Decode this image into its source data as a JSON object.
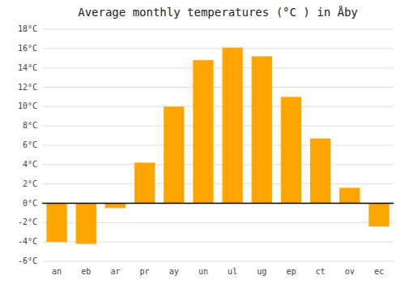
{
  "chart_data": {
    "type": "bar",
    "title": "Average monthly temperatures (°C ) in Åby",
    "categories": [
      "an",
      "eb",
      "ar",
      "pr",
      "ay",
      "un",
      "ul",
      "ug",
      "ep",
      "ct",
      "ov",
      "ec"
    ],
    "values": [
      -4.0,
      -4.2,
      -0.5,
      4.2,
      10.0,
      14.8,
      16.1,
      15.2,
      11.0,
      6.7,
      1.6,
      -2.4
    ],
    "color": "#FFA500",
    "ylim": [
      -6,
      18
    ],
    "yticks": [
      {
        "value": -6,
        "label": "-6°C"
      },
      {
        "value": -4,
        "label": "-4°C"
      },
      {
        "value": -2,
        "label": "-2°C"
      },
      {
        "value": 0,
        "label": "0°C"
      },
      {
        "value": 2,
        "label": "2°C"
      },
      {
        "value": 4,
        "label": "4°C"
      },
      {
        "value": 6,
        "label": "6°C"
      },
      {
        "value": 8,
        "label": "8°C"
      },
      {
        "value": 10,
        "label": "10°C"
      },
      {
        "value": 12,
        "label": "12°C"
      },
      {
        "value": 14,
        "label": "14°C"
      },
      {
        "value": 16,
        "label": "16°C"
      },
      {
        "value": 18,
        "label": "18°C"
      }
    ],
    "grid": true
  }
}
